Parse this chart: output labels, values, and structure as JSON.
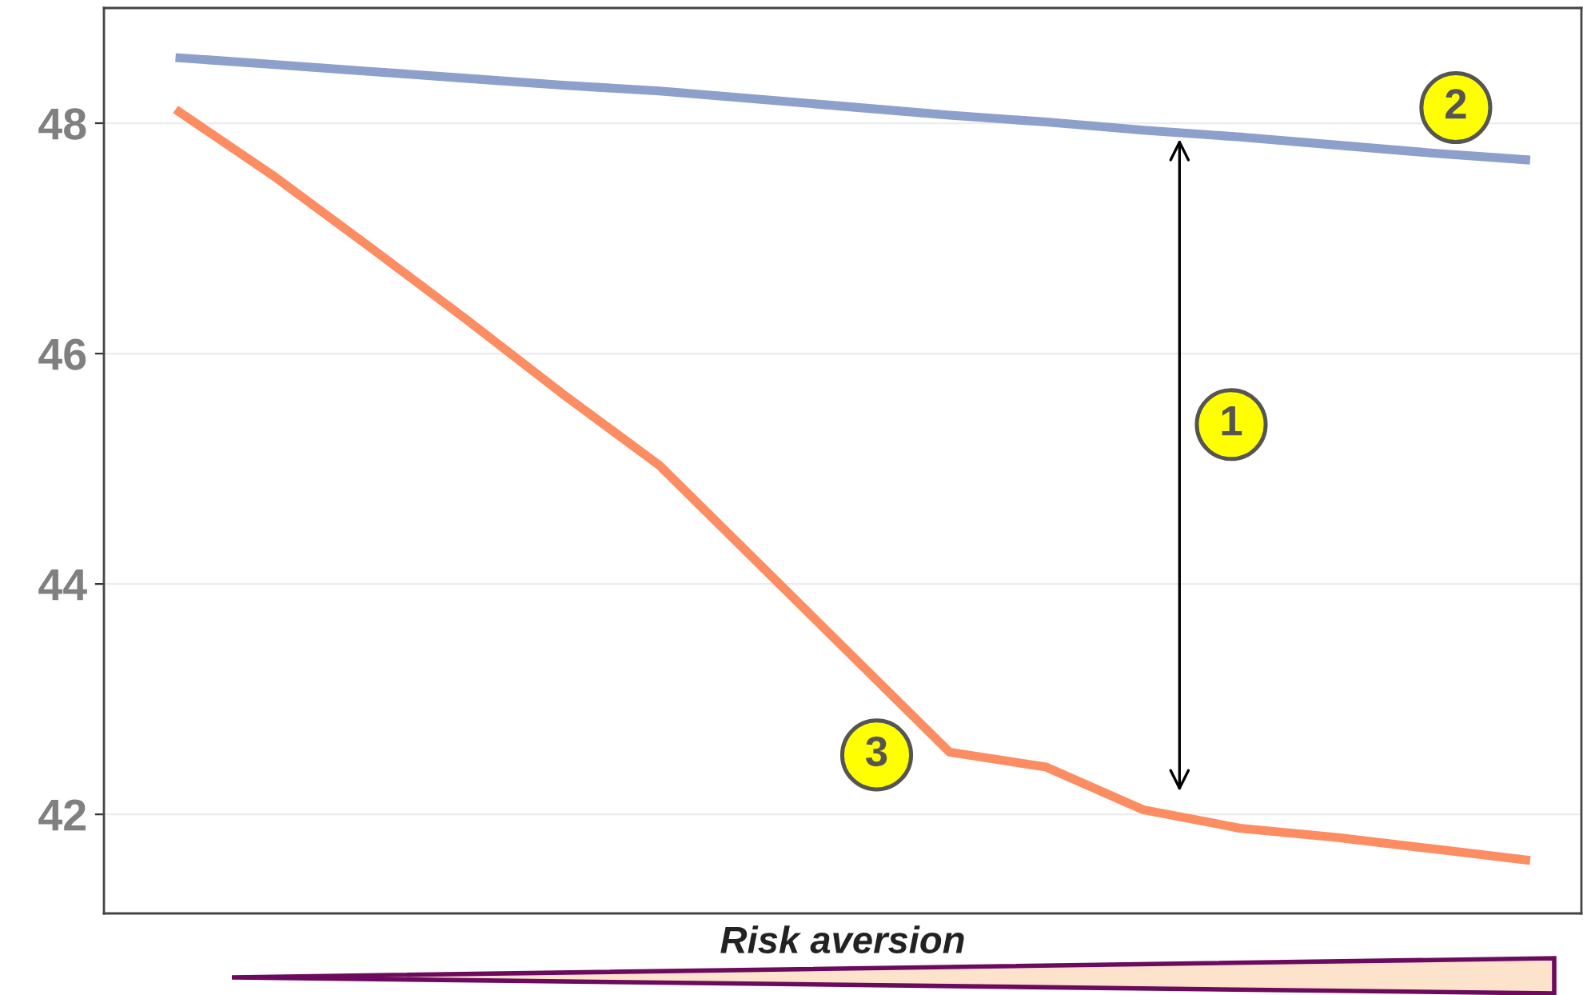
{
  "chart_data": {
    "type": "line",
    "xlabel": "Risk aversion",
    "categories": [
      null,
      null,
      null,
      null,
      null,
      null,
      null,
      null,
      null,
      null,
      null,
      null,
      null,
      null,
      null
    ],
    "series": [
      {
        "color": "#8da0cb",
        "values": [
          48.57,
          48.51,
          48.45,
          48.39,
          48.33,
          48.28,
          48.21,
          48.14,
          48.07,
          48.01,
          47.94,
          47.88,
          47.81,
          47.74,
          47.68
        ]
      },
      {
        "color": "#fc8d62",
        "values": [
          48.12,
          47.55,
          46.93,
          46.3,
          45.65,
          45.03,
          44.2,
          43.37,
          42.54,
          42.41,
          42.04,
          41.88,
          41.8,
          41.7,
          41.6
        ]
      }
    ],
    "ylim": [
      41.14,
      49.0
    ],
    "yticks": [
      42,
      44,
      46,
      48
    ],
    "grid": "y",
    "annotations": [
      "1",
      "2",
      "3"
    ]
  }
}
